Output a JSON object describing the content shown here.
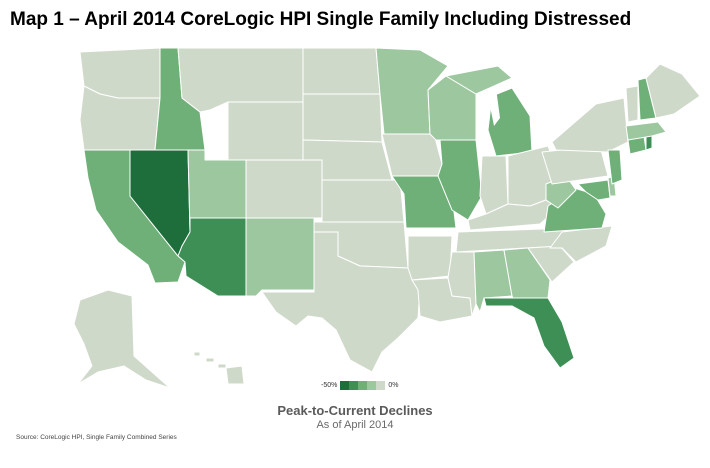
{
  "title": "Map 1 – April 2014 CoreLogic HPI Single Family Including Distressed",
  "legend": {
    "min_label": "-50%",
    "max_label": "0%",
    "colors": [
      "#1e6e3b",
      "#3d8f55",
      "#6fb078",
      "#9cc79f",
      "#cfd9ca"
    ]
  },
  "caption": {
    "line1": "Peak-to-Current Declines",
    "line2": "As of April 2014"
  },
  "source": "Source: CoreLogic HPI, Single Family Combined Series",
  "colors": {
    "shade_1": "#1e6e3b",
    "shade_2": "#3d8f55",
    "shade_3": "#6fb078",
    "shade_4": "#9cc79f",
    "shade_5": "#cfd9ca",
    "border": "#ffffff"
  }
}
